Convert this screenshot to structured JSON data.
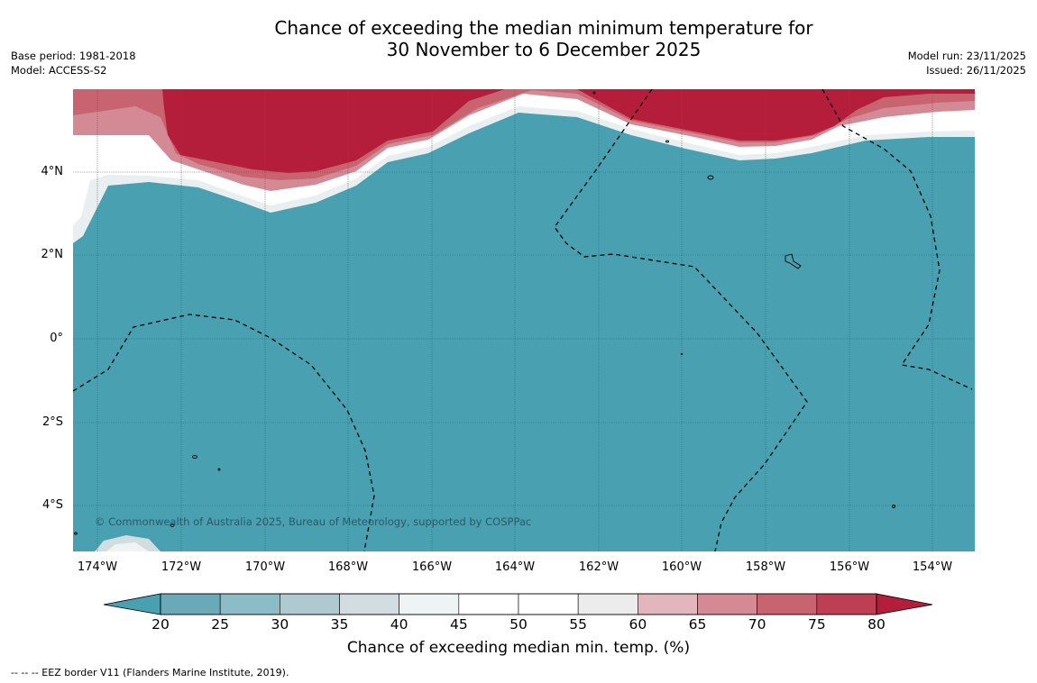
{
  "title": {
    "line1": "Chance of exceeding the median minimum temperature for",
    "line2": "30 November to 6 December 2025"
  },
  "meta_left": {
    "base_period": "Base period: 1981-2018",
    "model": "Model: ACCESS-S2"
  },
  "meta_right": {
    "model_run": "Model run: 23/11/2025",
    "issued": "Issued: 26/11/2025"
  },
  "latitude_ticks": [
    "4°N",
    "2°N",
    "0°",
    "2°S",
    "4°S"
  ],
  "longitude_ticks": [
    "174°W",
    "172°W",
    "170°W",
    "168°W",
    "166°W",
    "164°W",
    "162°W",
    "160°W",
    "158°W",
    "156°W",
    "154°W"
  ],
  "colorbar": {
    "label": "Chance of exceeding median min. temp. (%)",
    "ticks": [
      "20",
      "25",
      "30",
      "35",
      "40",
      "45",
      "50",
      "55",
      "60",
      "65",
      "70",
      "75",
      "80"
    ],
    "colors": [
      "#6aa9b8",
      "#8bbcc8",
      "#aec9d0",
      "#d1dde0",
      "#eef3f4",
      "#ffffff",
      "#ffffff",
      "#ececec",
      "#e2b6bd",
      "#d48a95",
      "#c86470",
      "#bd3f54"
    ],
    "under_color": "#48a0b1",
    "over_color": "#b51e3a"
  },
  "map_colors": {
    "below": "#48a0b1",
    "above": "#b51e3a"
  },
  "copyright": "© Commonwealth of Australia 2025, Bureau of Meteorology, supported by COSPPac",
  "footnote": "-- -- -- EEZ border V11 (Flanders Marine Institute, 2019)."
}
